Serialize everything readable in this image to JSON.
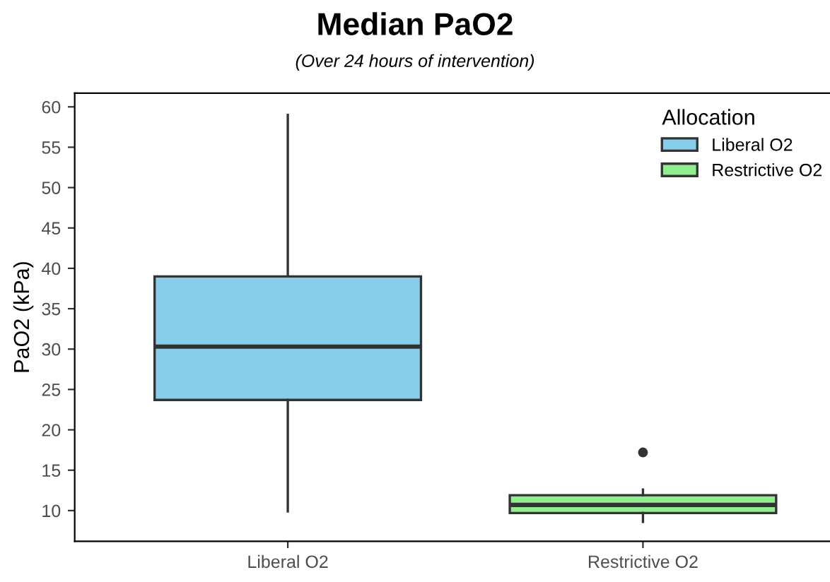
{
  "chart_data": {
    "type": "box",
    "title": "Median PaO2",
    "subtitle": "(Over 24 hours of intervention)",
    "ylabel": "PaO2 (kPa)",
    "legend_title": "Allocation",
    "categories": [
      "Liberal O2",
      "Restrictive O2"
    ],
    "series": [
      {
        "name": "Liberal O2",
        "color": "#87ceeb",
        "boxes": [
          {
            "low": 9.9,
            "q1": 23.7,
            "median": 30.3,
            "q3": 39.0,
            "high": 59.0
          },
          null
        ]
      },
      {
        "name": "Restrictive O2",
        "color": "#90ee90",
        "boxes": [
          null,
          {
            "low": 8.6,
            "q1": 9.7,
            "median": 10.7,
            "q3": 11.9,
            "high": 12.6,
            "outliers": [
              17.2
            ]
          }
        ]
      }
    ],
    "ylim": [
      6.2,
      61.7
    ],
    "yticks": [
      10,
      15,
      20,
      25,
      30,
      35,
      40,
      45,
      50,
      55,
      60
    ],
    "grid": false,
    "legend": "top right"
  }
}
